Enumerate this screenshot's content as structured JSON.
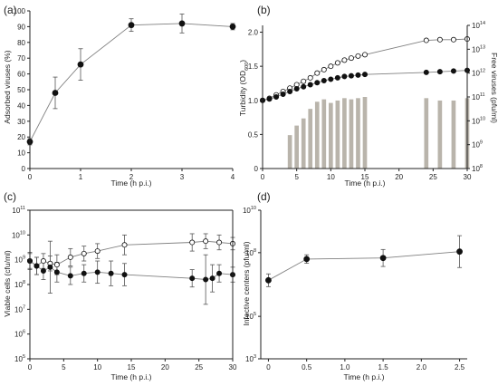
{
  "colors": {
    "axis": "#222222",
    "line": "#808080",
    "marker_filled": "#111111",
    "marker_open_fill": "#ffffff",
    "bar": "#b9b4ab"
  },
  "chart_data": [
    {
      "panel": "(a)",
      "type": "line",
      "xlabel": "Time (h p.i.)",
      "ylabel": "Adsorbed viruses (%)",
      "xlim": [
        0,
        4
      ],
      "ylim": [
        0,
        100
      ],
      "x_ticks": [
        "0",
        "1",
        "2",
        "3",
        "4"
      ],
      "y_ticks": [
        "0",
        "10",
        "20",
        "30",
        "40",
        "50",
        "60",
        "70",
        "80",
        "90",
        "100"
      ],
      "grid": false,
      "series": [
        {
          "marker": "filled",
          "x": [
            0,
            0.5,
            1,
            2,
            3,
            4
          ],
          "y": [
            17,
            48,
            66,
            91,
            92,
            90
          ],
          "err": [
            2,
            10,
            10,
            4,
            6,
            2
          ]
        }
      ]
    },
    {
      "panel": "(b)",
      "type": "line",
      "xlabel": "Time (h p.i.)",
      "ylabel": "Turbidity (OD",
      "ylabel_sub": "600",
      "ylabel_end": ")",
      "y2label": "Free viruses (pfu/ml)",
      "xlim": [
        0,
        30
      ],
      "ylim": [
        0,
        2.1
      ],
      "y2_scale": "log",
      "y2lim_exp": [
        8,
        14
      ],
      "x_ticks": [
        "0",
        "5",
        "10",
        "15",
        "20",
        "25",
        "30"
      ],
      "y_ticks": [
        "0",
        "0.5",
        "1.0",
        "1.5",
        "2.0"
      ],
      "y2_ticks": [
        "10",
        "10",
        "10",
        "10",
        "10",
        "10",
        "10"
      ],
      "y2_tick_exponents": [
        "8",
        "9",
        "10",
        "11",
        "12",
        "13",
        "14"
      ],
      "grid": false,
      "series": [
        {
          "marker": "open",
          "x": [
            0,
            1,
            2,
            3,
            4,
            5,
            6,
            7,
            8,
            9,
            10,
            11,
            12,
            13,
            14,
            15,
            24,
            26,
            28,
            30
          ],
          "y": [
            1.0,
            1.03,
            1.08,
            1.13,
            1.18,
            1.23,
            1.28,
            1.33,
            1.4,
            1.45,
            1.5,
            1.55,
            1.59,
            1.62,
            1.65,
            1.67,
            1.88,
            1.89,
            1.89,
            1.9
          ]
        },
        {
          "marker": "filled",
          "x": [
            0,
            1,
            2,
            3,
            4,
            5,
            6,
            7,
            8,
            9,
            10,
            11,
            12,
            13,
            14,
            15,
            24,
            26,
            28,
            30
          ],
          "y": [
            1.0,
            1.02,
            1.05,
            1.09,
            1.13,
            1.17,
            1.2,
            1.23,
            1.26,
            1.29,
            1.31,
            1.33,
            1.35,
            1.36,
            1.37,
            1.38,
            1.41,
            1.42,
            1.43,
            1.44
          ]
        }
      ],
      "bars": {
        "axis": "y2",
        "x": [
          4,
          5,
          6,
          7,
          8,
          9,
          10,
          11,
          12,
          13,
          14,
          15,
          24,
          26,
          28,
          30
        ],
        "log10_value": [
          9.4,
          9.8,
          10.1,
          10.5,
          10.8,
          10.9,
          10.75,
          10.85,
          10.95,
          10.9,
          10.95,
          11.0,
          10.95,
          10.85,
          10.85,
          10.95
        ]
      }
    },
    {
      "panel": "(c)",
      "type": "line",
      "xlabel": "Time (h p.i.)",
      "ylabel": "Viable cells (cfu/ml)",
      "xlim": [
        0,
        30
      ],
      "y_scale": "log",
      "ylim_exp": [
        5,
        11
      ],
      "x_ticks": [
        "0",
        "5",
        "10",
        "15",
        "20",
        "25",
        "30"
      ],
      "y_ticks": [
        "10",
        "10",
        "10",
        "10",
        "10",
        "10",
        "10"
      ],
      "y_tick_exponents": [
        "5",
        "6",
        "7",
        "8",
        "9",
        "10",
        "11"
      ],
      "grid": false,
      "series": [
        {
          "marker": "open",
          "x": [
            0,
            1,
            2,
            3,
            4,
            6,
            8,
            10,
            14,
            24,
            26,
            28,
            30
          ],
          "log10_y": [
            8.95,
            8.75,
            8.95,
            8.85,
            8.8,
            9.1,
            9.25,
            9.35,
            9.6,
            9.7,
            9.75,
            9.7,
            9.65
          ],
          "log10_err": [
            0.3,
            0.35,
            0.3,
            0.3,
            0.4,
            0.35,
            0.3,
            0.3,
            0.4,
            0.35,
            0.3,
            0.3,
            0.25
          ]
        },
        {
          "marker": "filled",
          "x": [
            0,
            1,
            2,
            3,
            4,
            6,
            8,
            10,
            12,
            14,
            24,
            26,
            27,
            28,
            30
          ],
          "log10_y": [
            8.95,
            8.75,
            8.55,
            8.7,
            8.5,
            8.35,
            8.45,
            8.5,
            8.45,
            8.4,
            8.25,
            8.2,
            8.25,
            8.45,
            8.4
          ],
          "log10_err": [
            0.35,
            0.35,
            0.35,
            1.05,
            0.4,
            0.35,
            0.35,
            0.45,
            0.5,
            0.45,
            0.35,
            1.0,
            0.55,
            0.35,
            0.3
          ]
        }
      ]
    },
    {
      "panel": "(d)",
      "type": "line",
      "xlabel": "Time (h p.i.)",
      "ylabel": "Infective centers (pfu/ml)",
      "xlim": [
        -0.1,
        2.6
      ],
      "y_scale": "log",
      "ylim_exp": [
        3,
        10
      ],
      "x_ticks": [
        "0",
        "0.5",
        "1.0",
        "1.5",
        "2.0",
        "2.5"
      ],
      "y_ticks": [
        "10",
        "10",
        "10",
        "10"
      ],
      "y_tick_exponents": [
        "3",
        "5",
        "8",
        "10"
      ],
      "grid": false,
      "series": [
        {
          "marker": "filled",
          "x": [
            0,
            0.5,
            1.5,
            2.5
          ],
          "log10_y": [
            6.7,
            7.7,
            7.75,
            8.05
          ],
          "log10_err": [
            0.3,
            0.2,
            0.4,
            0.75
          ]
        }
      ]
    }
  ]
}
